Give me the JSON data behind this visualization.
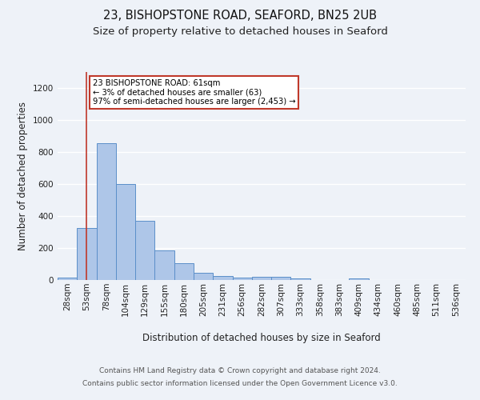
{
  "title_line1": "23, BISHOPSTONE ROAD, SEAFORD, BN25 2UB",
  "title_line2": "Size of property relative to detached houses in Seaford",
  "xlabel": "Distribution of detached houses by size in Seaford",
  "ylabel": "Number of detached properties",
  "bar_labels": [
    "28sqm",
    "53sqm",
    "78sqm",
    "104sqm",
    "129sqm",
    "155sqm",
    "180sqm",
    "205sqm",
    "231sqm",
    "256sqm",
    "282sqm",
    "307sqm",
    "333sqm",
    "358sqm",
    "383sqm",
    "409sqm",
    "434sqm",
    "460sqm",
    "485sqm",
    "511sqm",
    "536sqm"
  ],
  "bar_values": [
    15,
    325,
    855,
    600,
    370,
    183,
    107,
    47,
    25,
    17,
    22,
    20,
    10,
    0,
    0,
    10,
    0,
    0,
    0,
    0,
    0
  ],
  "bar_color": "#aec6e8",
  "bar_edge_color": "#5b8fc9",
  "ylim": [
    0,
    1300
  ],
  "yticks": [
    0,
    200,
    400,
    600,
    800,
    1000,
    1200
  ],
  "vline_x": 1,
  "vline_color": "#c0392b",
  "annotation_text": "23 BISHOPSTONE ROAD: 61sqm\n← 3% of detached houses are smaller (63)\n97% of semi-detached houses are larger (2,453) →",
  "annotation_box_color": "#ffffff",
  "annotation_box_edge": "#c0392b",
  "footer_line1": "Contains HM Land Registry data © Crown copyright and database right 2024.",
  "footer_line2": "Contains public sector information licensed under the Open Government Licence v3.0.",
  "background_color": "#eef2f8",
  "plot_background": "#eef2f8",
  "title_fontsize": 10.5,
  "subtitle_fontsize": 9.5,
  "axis_label_fontsize": 8.5,
  "tick_fontsize": 7.5,
  "footer_fontsize": 6.5
}
